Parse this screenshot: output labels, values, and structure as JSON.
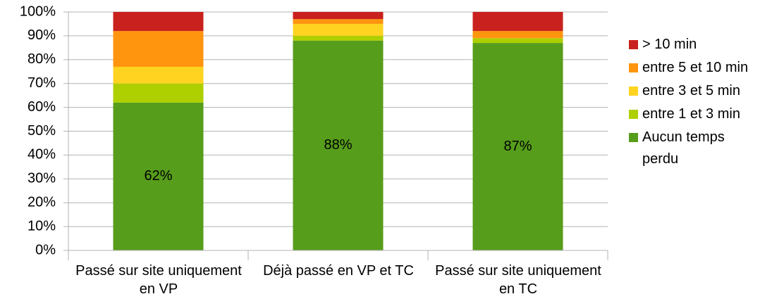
{
  "chart_data": {
    "type": "stacked_bar",
    "categories": [
      "Passé sur site uniquement en VP",
      "Déjà passé en VP et TC",
      "Passé sur site uniquement en TC"
    ],
    "series": [
      {
        "name": "Aucun temps perdu",
        "color": "#579d1c",
        "values": [
          62,
          88,
          87
        ],
        "value_labels": [
          "62%",
          "88%",
          "87%"
        ]
      },
      {
        "name": "entre 1 et 3 min",
        "color": "#aecf00",
        "values": [
          8,
          2,
          2
        ]
      },
      {
        "name": "entre 3 et 5 min",
        "color": "#ffd320",
        "values": [
          7,
          5,
          0
        ]
      },
      {
        "name": "entre 5 et 10 min",
        "color": "#ff950e",
        "values": [
          15,
          2,
          3
        ]
      },
      {
        "name": "> 10 min",
        "color": "#c9211e",
        "values": [
          8,
          3,
          8
        ]
      }
    ],
    "ylim": [
      0,
      100
    ],
    "yticks": [
      {
        "value": 0,
        "label": "0%"
      },
      {
        "value": 10,
        "label": "10%"
      },
      {
        "value": 20,
        "label": "20%"
      },
      {
        "value": 30,
        "label": "30%"
      },
      {
        "value": 40,
        "label": "40%"
      },
      {
        "value": 50,
        "label": "50%"
      },
      {
        "value": 60,
        "label": "60%"
      },
      {
        "value": 70,
        "label": "70%"
      },
      {
        "value": 80,
        "label": "80%"
      },
      {
        "value": 90,
        "label": "90%"
      },
      {
        "value": 100,
        "label": "100%"
      }
    ],
    "grid": true,
    "legend": "right"
  }
}
